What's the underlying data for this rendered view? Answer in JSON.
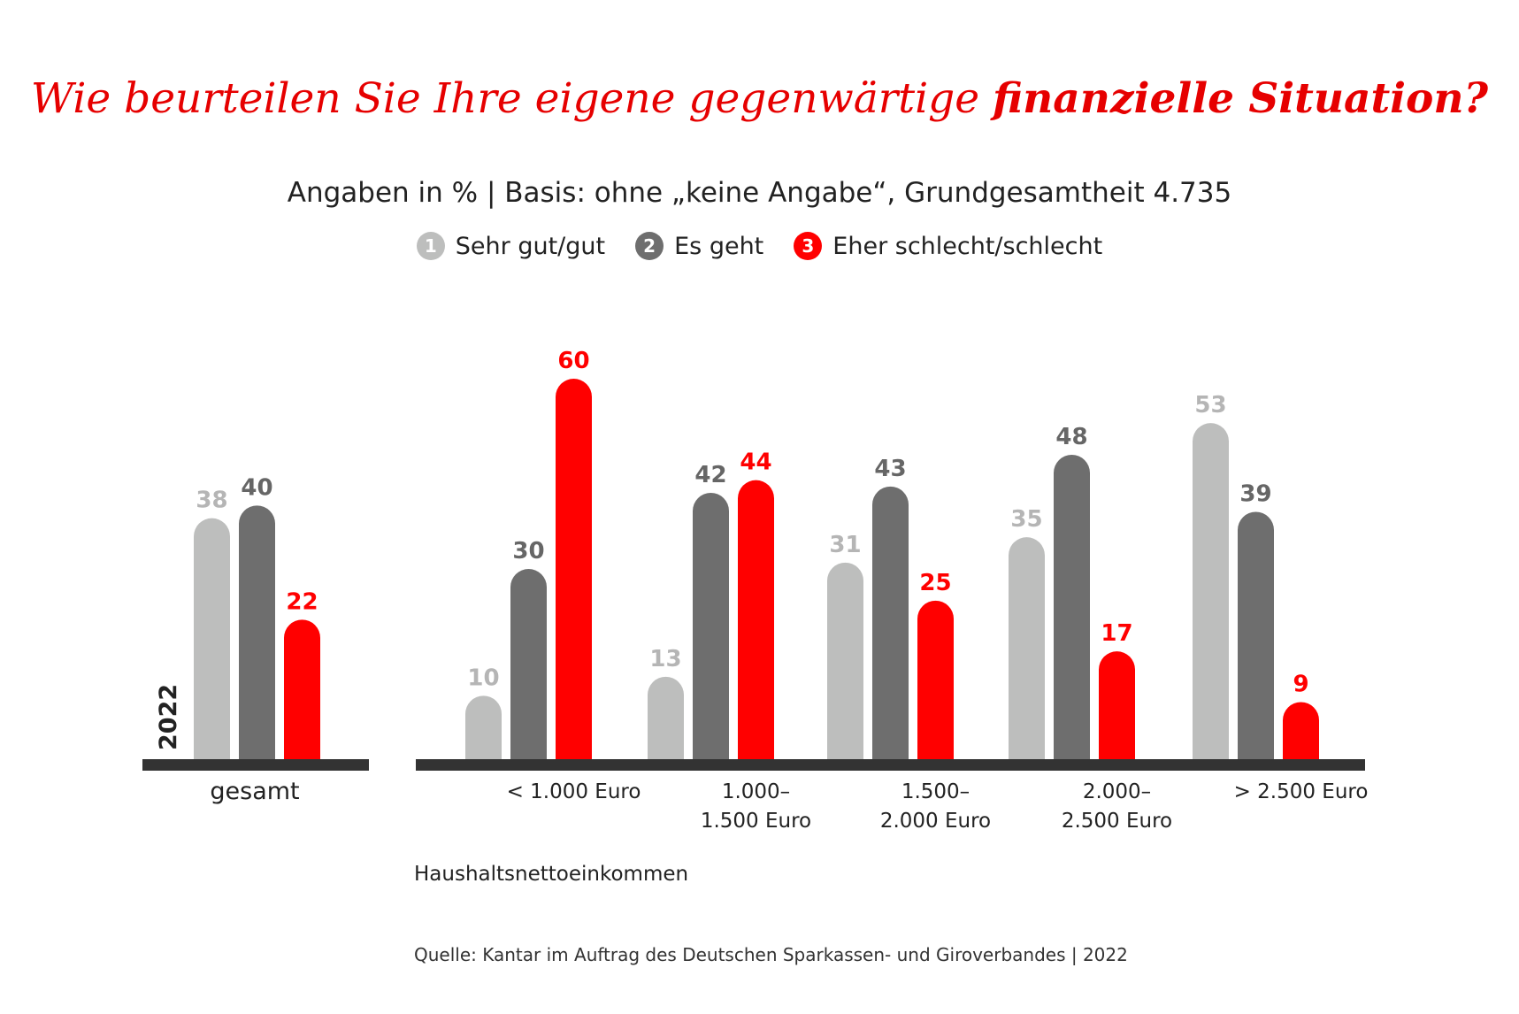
{
  "title": {
    "regular": "Wie beurteilen Sie Ihre eigene gegenwärtige ",
    "bold": "finanzielle Situation?"
  },
  "subtitle": "Angaben in % | Basis: ohne „keine Angabe“, Grundgesamtheit 4.735",
  "legend": [
    {
      "number": "1",
      "label": "Sehr gut/gut",
      "color": "#bdbebd"
    },
    {
      "number": "2",
      "label": "Es geht",
      "color": "#6e6e6e"
    },
    {
      "number": "3",
      "label": "Eher schlecht/schlecht",
      "color": "#ff0000"
    }
  ],
  "chart_data": {
    "type": "bar",
    "ylim": [
      0,
      60
    ],
    "year_label": "2022",
    "xlabel": "Haushaltsnettoeinkommen",
    "series": [
      {
        "name": "Sehr gut/gut",
        "color": "#bdbebd",
        "label_color": "#b5b5b5",
        "values": [
          38,
          10,
          13,
          31,
          35,
          53
        ]
      },
      {
        "name": "Es geht",
        "color": "#6e6e6e",
        "label_color": "#666666",
        "values": [
          40,
          30,
          42,
          43,
          48,
          39
        ]
      },
      {
        "name": "Eher schlecht/schlecht",
        "color": "#ff0000",
        "label_color": "#ff0000",
        "values": [
          22,
          60,
          44,
          25,
          17,
          9
        ]
      }
    ],
    "categories": [
      [
        "gesamt"
      ],
      [
        "< 1.000 Euro"
      ],
      [
        "1.000–",
        "1.500 Euro"
      ],
      [
        "1.500–",
        "2.000 Euro"
      ],
      [
        "2.000–",
        "2.500 Euro"
      ],
      [
        "> 2.500 Euro"
      ]
    ]
  },
  "source": "Quelle: Kantar im Auftrag des Deutschen Sparkassen- und Giroverbandes | 2022"
}
